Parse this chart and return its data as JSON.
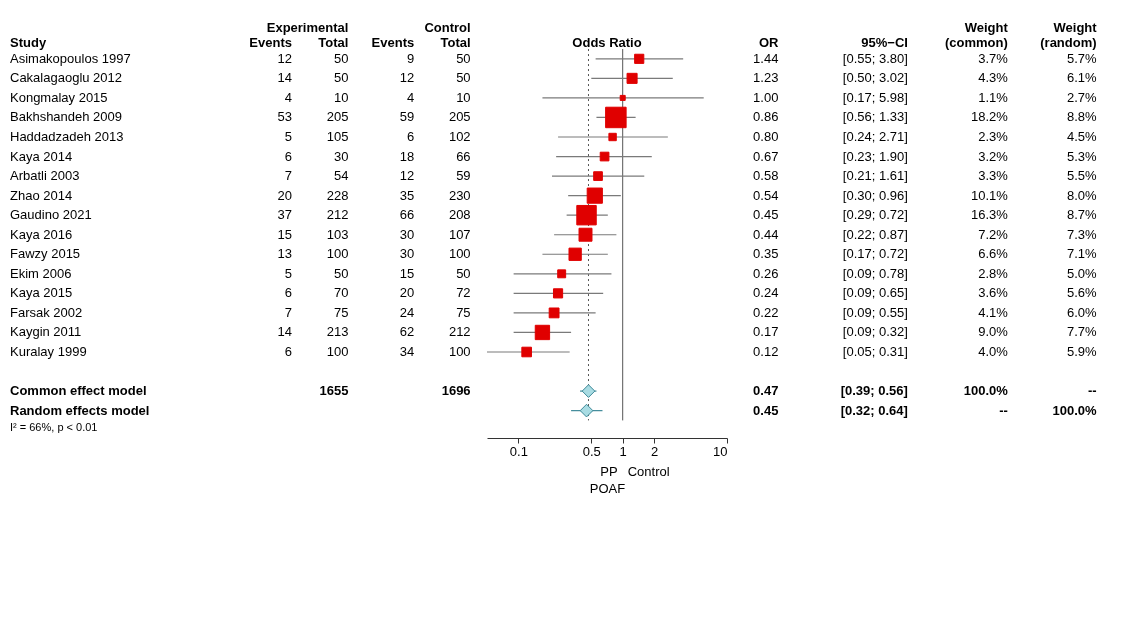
{
  "chart_data": [
    {
      "type": "other",
      "ylabel": "Study",
      "data_labels": true,
      "categories": [
        "Asimakopoulos 1997",
        "Cakalagaoglu 2012",
        "Kongmalay 2015",
        "Bakhshandeh 2009",
        "Haddadzadeh 2013",
        "Kaya 2014",
        "Arbatli 2003",
        "Zhao 2014",
        "Gaudino 2021",
        "Kaya 2016",
        "Fawzy 2015",
        "Ekim 2006",
        "Kaya 2015",
        "Farsak 2002",
        "Kaygin 2011",
        "Kuralay 1999",
        null,
        "Common effect model",
        "Random effects model"
      ],
      "series": [
        {
          "name": "Events",
          "values": [
            12,
            14,
            4,
            53,
            5,
            6,
            7,
            20,
            37,
            15,
            13,
            5,
            6,
            7,
            14,
            6,
            null,
            null,
            null
          ]
        },
        {
          "name": "Total",
          "values": [
            50,
            50,
            10,
            205,
            105,
            30,
            54,
            228,
            212,
            103,
            100,
            50,
            70,
            75,
            213,
            100,
            null,
            1655,
            null
          ]
        },
        {
          "name": "Events",
          "values": [
            9,
            12,
            4,
            59,
            6,
            18,
            12,
            35,
            66,
            30,
            30,
            15,
            20,
            24,
            62,
            34,
            null,
            null,
            null
          ]
        },
        {
          "name": "Total",
          "values": [
            50,
            50,
            10,
            205,
            102,
            66,
            59,
            230,
            208,
            107,
            100,
            50,
            72,
            75,
            212,
            100,
            null,
            1696,
            null
          ]
        }
      ],
      "annotations": [
        "Experimental",
        "Control",
        "I² = 66%, p < 0.01"
      ]
    },
    {
      "type": "scatter",
      "orientation": "horizontal",
      "title": "Odds Ratio",
      "xlabel": "POAF",
      "log": "x",
      "marker": "square",
      "xlim": [
        0.05,
        10
      ],
      "xticks": [
        0.1,
        0.5,
        1,
        2,
        10
      ],
      "series": [
        {
          "type": "bubble",
          "color": "#e00000",
          "values": [
            1.44,
            1.23,
            1.0,
            0.86,
            0.8,
            0.67,
            0.58,
            0.54,
            0.45,
            0.44,
            0.35,
            0.26,
            0.24,
            0.22,
            0.17,
            0.12,
            null,
            null,
            null
          ],
          "errors": [
            [
              0.55,
              3.8
            ],
            [
              0.5,
              3.02
            ],
            [
              0.17,
              5.98
            ],
            [
              0.56,
              1.33
            ],
            [
              0.24,
              2.71
            ],
            [
              0.23,
              1.9
            ],
            [
              0.21,
              1.61
            ],
            [
              0.3,
              0.96
            ],
            [
              0.29,
              0.72
            ],
            [
              0.22,
              0.87
            ],
            [
              0.17,
              0.72
            ],
            [
              0.09,
              0.78
            ],
            [
              0.09,
              0.65
            ],
            [
              0.09,
              0.55
            ],
            [
              0.09,
              0.32
            ],
            [
              0.05,
              0.31
            ],
            null,
            null,
            null
          ],
          "sizes": [
            0.2,
            0.24,
            0.06,
            1,
            0.13,
            0.18,
            0.18,
            0.55,
            0.9,
            0.4,
            0.36,
            0.15,
            0.2,
            0.23,
            0.49,
            0.22,
            null,
            null,
            null
          ]
        },
        {
          "type": "scatter",
          "marker": "diamond",
          "color": "#a9dce3",
          "values": [
            null,
            null,
            null,
            null,
            null,
            null,
            null,
            null,
            null,
            null,
            null,
            null,
            null,
            null,
            null,
            null,
            null,
            0.47,
            0.45
          ],
          "errors": [
            null,
            null,
            null,
            null,
            null,
            null,
            null,
            null,
            null,
            null,
            null,
            null,
            null,
            null,
            null,
            null,
            null,
            [
              0.39,
              0.56
            ],
            [
              0.32,
              0.64
            ]
          ]
        }
      ],
      "ref_lines": [
        {
          "axis": "x",
          "value": 1,
          "color": "#555555",
          "line_style": "solid"
        },
        {
          "axis": "x",
          "value": 0.47,
          "color": "#555555",
          "line_style": "dotted"
        }
      ],
      "annotations": [
        "PP",
        "Control"
      ]
    },
    {
      "type": "other",
      "annotations": [
        "OR",
        "95%−CI",
        "Weight (common)",
        "Weight (random)",
        "1.44",
        "[0.55; 3.80]",
        "3.7%",
        "5.7%",
        "1.23",
        "[0.50; 3.02]",
        "4.3%",
        "6.1%",
        "1.00",
        "[0.17; 5.98]",
        "1.1%",
        "2.7%",
        "0.86",
        "[0.56; 1.33]",
        "18.2%",
        "8.8%",
        "0.80",
        "[0.24; 2.71]",
        "2.3%",
        "4.5%",
        "0.67",
        "[0.23; 1.90]",
        "3.2%",
        "5.3%",
        "0.58",
        "[0.21; 1.61]",
        "3.3%",
        "5.5%",
        "0.54",
        "[0.30; 0.96]",
        "10.1%",
        "8.0%",
        "0.45",
        "[0.29; 0.72]",
        "16.3%",
        "8.7%",
        "0.44",
        "[0.22; 0.87]",
        "7.2%",
        "7.3%",
        "0.35",
        "[0.17; 0.72]",
        "6.6%",
        "7.1%",
        "0.26",
        "[0.09; 0.78]",
        "2.8%",
        "5.0%",
        "0.24",
        "[0.09; 0.65]",
        "3.6%",
        "5.6%",
        "0.22",
        "[0.09; 0.55]",
        "4.1%",
        "6.0%",
        "0.17",
        "[0.09; 0.32]",
        "9.0%",
        "7.7%",
        "0.12",
        "[0.05; 0.31]",
        "4.0%",
        "5.9%",
        "0.47",
        "[0.39; 0.56]",
        "100.0%",
        "--",
        "0.45",
        "[0.32; 0.64]",
        "--",
        "100.0%"
      ]
    }
  ]
}
